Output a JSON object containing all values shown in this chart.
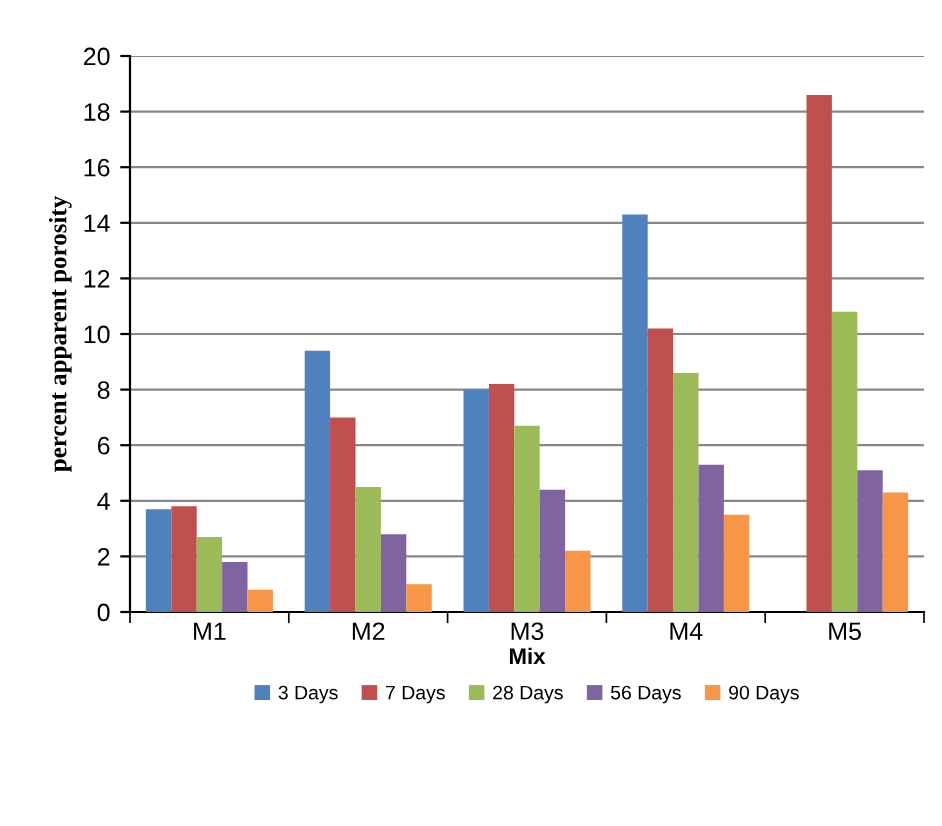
{
  "chart_data": {
    "type": "bar",
    "xlabel": "Mix",
    "ylabel": "percent apparent porosity",
    "categories": [
      "M1",
      "M2",
      "M3",
      "M4",
      "M5"
    ],
    "series": [
      {
        "name": "3 Days",
        "color": "#4f81bd",
        "values": [
          3.7,
          9.4,
          8.0,
          14.3,
          null
        ]
      },
      {
        "name": "7 Days",
        "color": "#c0504d",
        "values": [
          3.8,
          7.0,
          8.2,
          10.2,
          18.6
        ]
      },
      {
        "name": "28 Days",
        "color": "#9bbb59",
        "values": [
          2.7,
          4.5,
          6.7,
          8.6,
          10.8
        ]
      },
      {
        "name": "56 Days",
        "color": "#8064a2",
        "values": [
          1.8,
          2.8,
          4.4,
          5.3,
          5.1
        ]
      },
      {
        "name": "90 Days",
        "color": "#f79646",
        "values": [
          0.8,
          1.0,
          2.2,
          3.5,
          4.3
        ]
      }
    ],
    "ylim": [
      0,
      20
    ],
    "yticks": [
      0,
      2,
      4,
      6,
      8,
      10,
      12,
      14,
      16,
      18,
      20
    ],
    "grid": "y",
    "legend": "bottom"
  }
}
